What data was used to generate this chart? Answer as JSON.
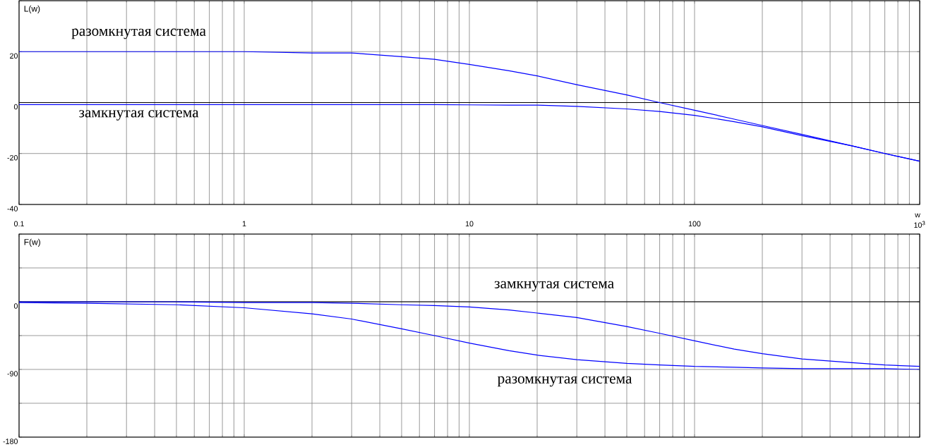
{
  "chart_data": [
    {
      "type": "line",
      "ylabel": "L(w)",
      "xlabel": "w",
      "log": "x",
      "grid": true,
      "xlim": [
        0.1,
        1000
      ],
      "xticks": [
        0.1,
        1,
        10,
        100,
        {
          "value": 1000,
          "label": "10$^{3}$"
        }
      ],
      "ylim": [
        -40,
        40
      ],
      "yticks": [
        -40,
        -20,
        0,
        20,
        {
          "value": 40,
          "label": null
        }
      ],
      "x": [
        0.1,
        0.2,
        0.5,
        1,
        2,
        3,
        5,
        7,
        10,
        15,
        20,
        30,
        50,
        70,
        100,
        150,
        200,
        300,
        500,
        700,
        1000
      ],
      "ref_lines": [
        {
          "axis": "y",
          "value": 0,
          "color": "#000000"
        }
      ],
      "series": [
        {
          "name": "разомкнутая система",
          "color": "#0000ff",
          "values": [
            20,
            20,
            20,
            20,
            19.5,
            19.5,
            18,
            17,
            15,
            12.5,
            10.5,
            7,
            3,
            0,
            -3,
            -6.5,
            -9,
            -12.5,
            -17,
            -20,
            -23
          ]
        },
        {
          "name": "замкнутая система",
          "color": "#0000ff",
          "values": [
            -0.8,
            -0.8,
            -0.8,
            -0.8,
            -0.8,
            -0.8,
            -0.8,
            -0.8,
            -0.9,
            -1,
            -1,
            -1.5,
            -2.5,
            -3.5,
            -5,
            -7.5,
            -9.5,
            -13,
            -17,
            -20,
            -23
          ]
        }
      ]
    },
    {
      "type": "line",
      "ylabel": "F(w)",
      "log": "x",
      "grid": true,
      "tick_labels": "y",
      "xlim": [
        0.1,
        1000
      ],
      "xticks": [
        0.1,
        1,
        10,
        100,
        1000
      ],
      "ylim": [
        -180,
        90
      ],
      "yticks": [
        {
          "value": -180,
          "label": "-180"
        },
        {
          "value": -135,
          "label": null
        },
        -90,
        {
          "value": -45,
          "label": null
        },
        0,
        {
          "value": 45,
          "label": null
        },
        {
          "value": 90,
          "label": null
        }
      ],
      "x": [
        0.1,
        0.2,
        0.5,
        1,
        2,
        3,
        5,
        7,
        10,
        15,
        20,
        30,
        50,
        70,
        100,
        150,
        200,
        300,
        500,
        700,
        1000
      ],
      "ref_lines": [
        {
          "axis": "y",
          "value": 0,
          "color": "#000000"
        }
      ],
      "series": [
        {
          "name": "разомкнутая система",
          "color": "#0000ff",
          "values": [
            -1,
            -2,
            -4,
            -8,
            -16,
            -23,
            -36,
            -45,
            -55,
            -65,
            -71,
            -77,
            -82,
            -84,
            -86,
            -87,
            -88,
            -89,
            -89,
            -89,
            -90
          ]
        },
        {
          "name": "замкнутая система",
          "color": "#0000ff",
          "values": [
            0,
            0,
            0,
            -1,
            -1,
            -2,
            -4,
            -5,
            -7,
            -11,
            -15,
            -21,
            -33,
            -42,
            -52,
            -63,
            -69,
            -76,
            -81,
            -84,
            -86
          ]
        }
      ]
    }
  ]
}
